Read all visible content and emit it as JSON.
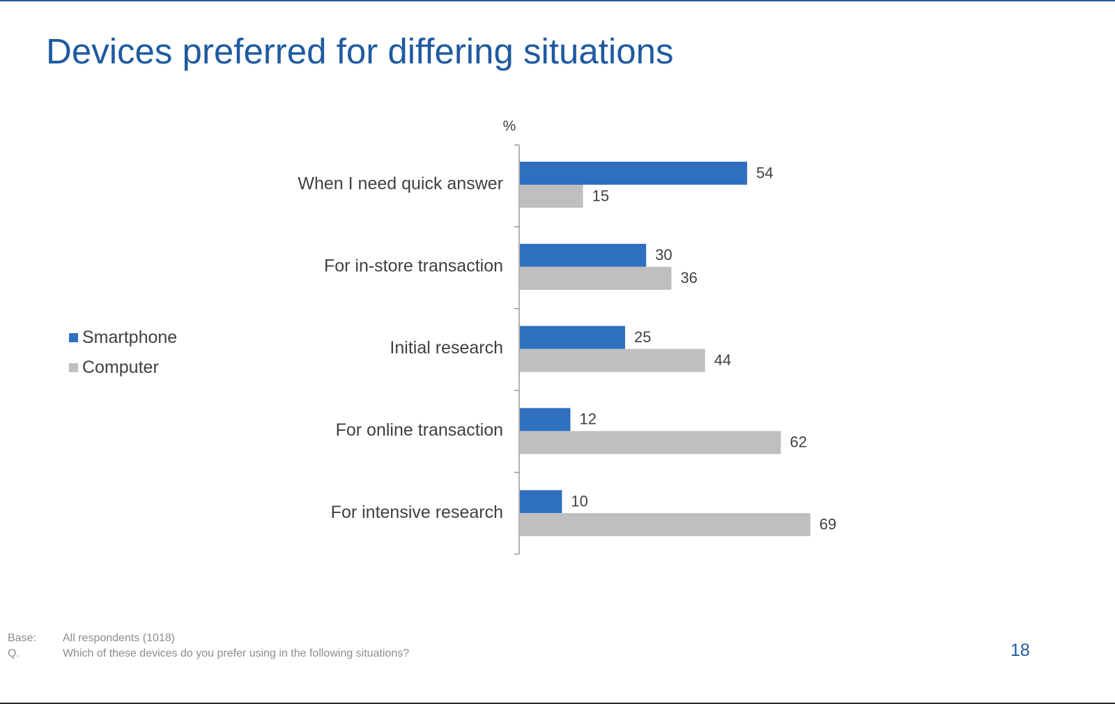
{
  "slide": {
    "title": "Devices preferred for differing situations",
    "page_number": "18"
  },
  "footnote": {
    "base_key": "Base:",
    "base_text": "All respondents (1018)",
    "q_key": "Q.",
    "q_text": "Which of these devices do you prefer using in the following situations?"
  },
  "colors": {
    "title": "#1f5aa0",
    "smartphone": "#2e6fbf",
    "computer": "#bfbfbf"
  },
  "chart_data": {
    "type": "bar",
    "orientation": "horizontal",
    "unit_label": "%",
    "categories": [
      "When I need quick answer",
      "For in-store transaction",
      "Initial research",
      "For online transaction",
      "For intensive research"
    ],
    "series": [
      {
        "name": "Smartphone",
        "color": "#2e6fbf",
        "values": [
          54,
          30,
          25,
          12,
          10
        ]
      },
      {
        "name": "Computer",
        "color": "#bfbfbf",
        "values": [
          15,
          36,
          44,
          62,
          69
        ]
      }
    ],
    "xlim": [
      0,
      100
    ],
    "grid": false,
    "data_labels": true,
    "legend_position": "left"
  }
}
